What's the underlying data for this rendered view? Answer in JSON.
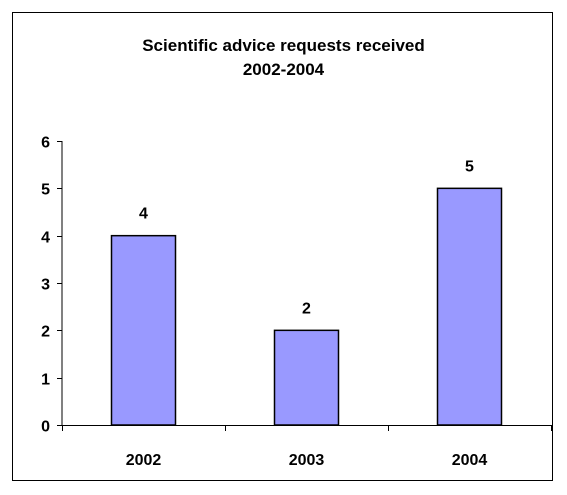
{
  "chart_data": {
    "type": "bar",
    "title_lines": [
      "Scientific advice requests received",
      "2002-2004"
    ],
    "categories": [
      "2002",
      "2003",
      "2004"
    ],
    "values": [
      4,
      2,
      5
    ],
    "data_labels": [
      "4",
      "2",
      "5"
    ],
    "y_ticks": [
      "0",
      "1",
      "2",
      "3",
      "4",
      "5",
      "6"
    ],
    "ylim": [
      0,
      6
    ],
    "xlabel": "",
    "ylabel": "",
    "grid": false,
    "legend": "none",
    "bar_color": "#9999ff",
    "bar_outline_color": "#000000"
  }
}
